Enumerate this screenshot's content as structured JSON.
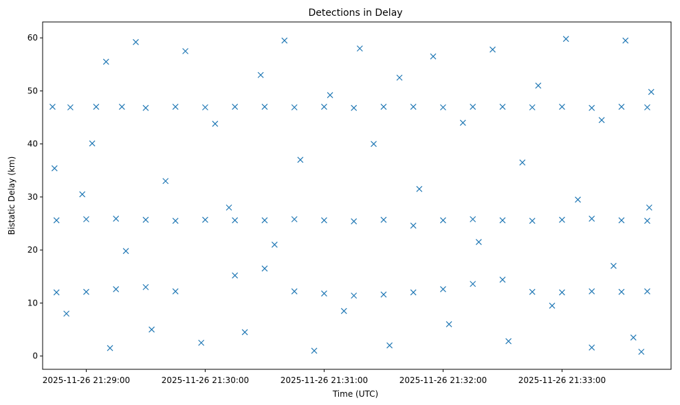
{
  "chart_data": {
    "type": "scatter",
    "title": "Detections in Delay",
    "xlabel": "Time (UTC)",
    "ylabel": "Bistatic Delay (km)",
    "x_ticks": [
      "2025-11-26 21:29:00",
      "2025-11-26 21:30:00",
      "2025-11-26 21:31:00",
      "2025-11-26 21:32:00",
      "2025-11-26 21:33:00"
    ],
    "y_ticks": [
      0,
      10,
      20,
      30,
      40,
      50,
      60
    ],
    "xlim": [
      "2025-11-26 21:28:38",
      "2025-11-26 21:33:55"
    ],
    "ylim": [
      -2.5,
      63
    ],
    "marker": "x",
    "color": "#1f77b4",
    "grid": false,
    "series": [
      {
        "values": [
          [
            "2025-11-26 21:28:43",
            47.0
          ],
          [
            "2025-11-26 21:28:52",
            46.9
          ],
          [
            "2025-11-26 21:29:05",
            47.0
          ],
          [
            "2025-11-26 21:29:18",
            47.0
          ],
          [
            "2025-11-26 21:29:30",
            46.8
          ],
          [
            "2025-11-26 21:29:45",
            47.0
          ],
          [
            "2025-11-26 21:30:00",
            46.9
          ],
          [
            "2025-11-26 21:30:15",
            47.0
          ],
          [
            "2025-11-26 21:30:30",
            47.0
          ],
          [
            "2025-11-26 21:30:45",
            46.9
          ],
          [
            "2025-11-26 21:31:00",
            47.0
          ],
          [
            "2025-11-26 21:31:15",
            46.8
          ],
          [
            "2025-11-26 21:31:30",
            47.0
          ],
          [
            "2025-11-26 21:31:45",
            47.0
          ],
          [
            "2025-11-26 21:32:00",
            46.9
          ],
          [
            "2025-11-26 21:32:15",
            47.0
          ],
          [
            "2025-11-26 21:32:30",
            47.0
          ],
          [
            "2025-11-26 21:32:45",
            46.9
          ],
          [
            "2025-11-26 21:33:00",
            47.0
          ],
          [
            "2025-11-26 21:33:15",
            46.8
          ],
          [
            "2025-11-26 21:33:30",
            47.0
          ],
          [
            "2025-11-26 21:33:43",
            46.9
          ],
          [
            "2025-11-26 21:28:45",
            25.6
          ],
          [
            "2025-11-26 21:29:00",
            25.8
          ],
          [
            "2025-11-26 21:29:15",
            25.9
          ],
          [
            "2025-11-26 21:29:30",
            25.7
          ],
          [
            "2025-11-26 21:29:45",
            25.5
          ],
          [
            "2025-11-26 21:30:00",
            25.7
          ],
          [
            "2025-11-26 21:30:15",
            25.6
          ],
          [
            "2025-11-26 21:30:30",
            25.6
          ],
          [
            "2025-11-26 21:30:45",
            25.8
          ],
          [
            "2025-11-26 21:31:00",
            25.6
          ],
          [
            "2025-11-26 21:31:15",
            25.4
          ],
          [
            "2025-11-26 21:31:30",
            25.7
          ],
          [
            "2025-11-26 21:31:45",
            24.6
          ],
          [
            "2025-11-26 21:32:00",
            25.6
          ],
          [
            "2025-11-26 21:32:15",
            25.8
          ],
          [
            "2025-11-26 21:32:30",
            25.6
          ],
          [
            "2025-11-26 21:32:45",
            25.5
          ],
          [
            "2025-11-26 21:33:00",
            25.7
          ],
          [
            "2025-11-26 21:33:15",
            25.9
          ],
          [
            "2025-11-26 21:33:30",
            25.6
          ],
          [
            "2025-11-26 21:33:43",
            25.5
          ],
          [
            "2025-11-26 21:28:45",
            12.0
          ],
          [
            "2025-11-26 21:29:00",
            12.1
          ],
          [
            "2025-11-26 21:29:15",
            12.6
          ],
          [
            "2025-11-26 21:29:30",
            13.0
          ],
          [
            "2025-11-26 21:29:45",
            12.2
          ],
          [
            "2025-11-26 21:30:15",
            15.2
          ],
          [
            "2025-11-26 21:30:30",
            16.5
          ],
          [
            "2025-11-26 21:30:45",
            12.2
          ],
          [
            "2025-11-26 21:31:00",
            11.8
          ],
          [
            "2025-11-26 21:31:15",
            11.4
          ],
          [
            "2025-11-26 21:31:30",
            11.6
          ],
          [
            "2025-11-26 21:31:45",
            12.0
          ],
          [
            "2025-11-26 21:32:00",
            12.6
          ],
          [
            "2025-11-26 21:32:15",
            13.6
          ],
          [
            "2025-11-26 21:32:30",
            14.4
          ],
          [
            "2025-11-26 21:32:45",
            12.1
          ],
          [
            "2025-11-26 21:33:00",
            12.0
          ],
          [
            "2025-11-26 21:33:15",
            12.2
          ],
          [
            "2025-11-26 21:33:30",
            12.1
          ],
          [
            "2025-11-26 21:33:43",
            12.2
          ],
          [
            "2025-11-26 21:28:44",
            35.4
          ],
          [
            "2025-11-26 21:28:50",
            8.0
          ],
          [
            "2025-11-26 21:28:58",
            30.5
          ],
          [
            "2025-11-26 21:29:03",
            40.1
          ],
          [
            "2025-11-26 21:29:10",
            55.5
          ],
          [
            "2025-11-26 21:29:12",
            1.5
          ],
          [
            "2025-11-26 21:29:20",
            19.8
          ],
          [
            "2025-11-26 21:29:25",
            59.2
          ],
          [
            "2025-11-26 21:29:33",
            5.0
          ],
          [
            "2025-11-26 21:29:40",
            33.0
          ],
          [
            "2025-11-26 21:29:50",
            57.5
          ],
          [
            "2025-11-26 21:29:58",
            2.5
          ],
          [
            "2025-11-26 21:30:05",
            43.8
          ],
          [
            "2025-11-26 21:30:12",
            28.0
          ],
          [
            "2025-11-26 21:30:20",
            4.5
          ],
          [
            "2025-11-26 21:30:28",
            53.0
          ],
          [
            "2025-11-26 21:30:35",
            21.0
          ],
          [
            "2025-11-26 21:30:40",
            59.5
          ],
          [
            "2025-11-26 21:30:48",
            37.0
          ],
          [
            "2025-11-26 21:30:55",
            1.0
          ],
          [
            "2025-11-26 21:31:03",
            49.2
          ],
          [
            "2025-11-26 21:31:10",
            8.5
          ],
          [
            "2025-11-26 21:31:18",
            58.0
          ],
          [
            "2025-11-26 21:31:25",
            40.0
          ],
          [
            "2025-11-26 21:31:33",
            2.0
          ],
          [
            "2025-11-26 21:31:38",
            52.5
          ],
          [
            "2025-11-26 21:31:48",
            31.5
          ],
          [
            "2025-11-26 21:31:55",
            56.5
          ],
          [
            "2025-11-26 21:32:03",
            6.0
          ],
          [
            "2025-11-26 21:32:10",
            44.0
          ],
          [
            "2025-11-26 21:32:18",
            21.5
          ],
          [
            "2025-11-26 21:32:25",
            57.8
          ],
          [
            "2025-11-26 21:32:33",
            2.8
          ],
          [
            "2025-11-26 21:32:40",
            36.5
          ],
          [
            "2025-11-26 21:32:48",
            51.0
          ],
          [
            "2025-11-26 21:32:55",
            9.5
          ],
          [
            "2025-11-26 21:33:02",
            59.8
          ],
          [
            "2025-11-26 21:33:08",
            29.5
          ],
          [
            "2025-11-26 21:33:15",
            1.6
          ],
          [
            "2025-11-26 21:33:20",
            44.5
          ],
          [
            "2025-11-26 21:33:26",
            17.0
          ],
          [
            "2025-11-26 21:33:32",
            59.5
          ],
          [
            "2025-11-26 21:33:36",
            3.5
          ],
          [
            "2025-11-26 21:33:40",
            0.8
          ],
          [
            "2025-11-26 21:33:44",
            28.0
          ],
          [
            "2025-11-26 21:33:45",
            49.8
          ]
        ]
      }
    ]
  }
}
